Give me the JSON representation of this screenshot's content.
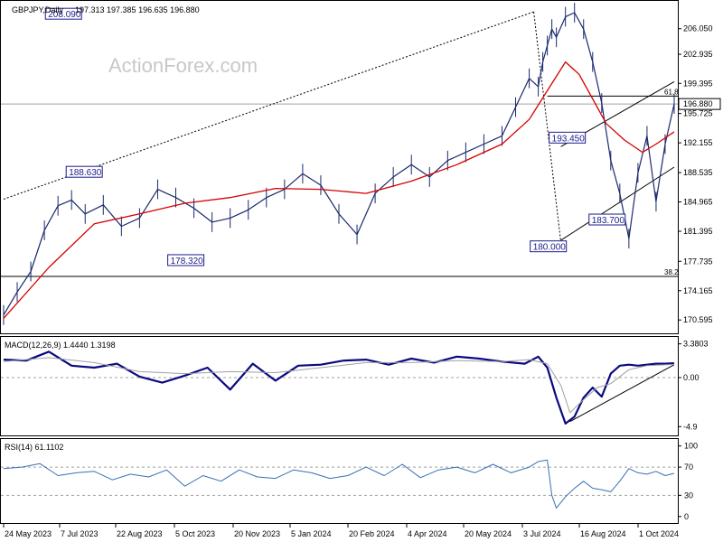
{
  "header": {
    "symbol": "GBPJPY,Daily",
    "ohlc": "197.313 197.385 196.635 196.880"
  },
  "watermark": "ActionForex.com",
  "colors": {
    "price": "#1a2a6c",
    "ema": "#d40000",
    "macd": "#0a0a80",
    "signal": "#a0a0a0",
    "rsi": "#3a6fb5",
    "grid": "#a0a0a0",
    "trend": "#000000",
    "label_border": "#1b1b8c"
  },
  "chart_data": [
    {
      "panel": "price",
      "type": "line",
      "title": "GBPJPY,Daily",
      "x_labels": [
        "24 May 2023",
        "7 Jul 2023",
        "22 Aug 2023",
        "5 Oct 2023",
        "20 Nov 2023",
        "5 Jan 2024",
        "20 Feb 2024",
        "4 Apr 2024",
        "20 May 2024",
        "3 Jul 2024",
        "16 Aug 2024",
        "1 Oct 2024"
      ],
      "y_ticks": [
        206.05,
        202.935,
        199.395,
        195.725,
        192.155,
        188.535,
        184.965,
        181.395,
        177.735,
        174.165,
        170.595
      ],
      "ylim": [
        169.3,
        209.1
      ],
      "current_price": 196.88,
      "annotations": [
        {
          "label": "208.090",
          "x": 18,
          "y": 208.09
        },
        {
          "label": "188.630",
          "x": 15,
          "y": 188.63
        },
        {
          "label": "178.320",
          "x": 45,
          "y": 178.32
        },
        {
          "label": "193.450",
          "x": 122,
          "y": 193.45
        },
        {
          "label": "183.700",
          "x": 130,
          "y": 183.7
        },
        {
          "label": "180.000",
          "x": 125,
          "y": 180.0
        }
      ],
      "fib_levels": [
        {
          "label": "61.8",
          "y": 197.85
        },
        {
          "label": "38.2",
          "y": 175.9
        }
      ],
      "series": [
        {
          "kind": "price",
          "x": [
            0,
            3,
            6,
            9,
            12,
            15,
            18,
            22,
            26,
            30,
            34,
            38,
            42,
            46,
            50,
            54,
            58,
            62,
            66,
            70,
            74,
            78,
            82,
            86,
            90,
            94,
            98,
            102,
            106,
            110,
            113,
            116,
            118,
            119,
            120,
            121,
            122,
            124,
            126,
            128,
            130,
            132,
            134,
            136,
            138,
            140,
            142,
            144,
            146,
            148
          ],
          "y": [
            171.2,
            174.0,
            176.5,
            181.5,
            184.5,
            185.2,
            183.5,
            184.6,
            182.0,
            183.0,
            186.5,
            185.5,
            184.2,
            182.5,
            183.0,
            184.0,
            185.5,
            186.5,
            188.4,
            187.0,
            183.5,
            181.0,
            186.0,
            188.0,
            189.5,
            188.0,
            190.0,
            191.0,
            192.0,
            193.0,
            196.5,
            200.0,
            199.0,
            202.0,
            204.0,
            206.0,
            205.0,
            207.5,
            208.0,
            206.0,
            202.0,
            197.0,
            190.0,
            186.0,
            180.5,
            188.5,
            193.0,
            185.0,
            192.0,
            196.9
          ]
        },
        {
          "kind": "ema",
          "x": [
            0,
            10,
            20,
            30,
            40,
            50,
            60,
            70,
            80,
            90,
            100,
            110,
            116,
            120,
            124,
            127,
            130,
            133,
            137,
            141,
            144,
            148
          ],
          "y": [
            170.8,
            177.0,
            182.3,
            183.5,
            184.8,
            185.5,
            186.6,
            186.5,
            186.0,
            187.5,
            189.5,
            192.0,
            195.0,
            198.5,
            202.0,
            200.5,
            197.5,
            194.5,
            192.5,
            191.0,
            192.0,
            193.5
          ]
        }
      ]
    },
    {
      "panel": "macd",
      "type": "line",
      "title": "MACD(12,26,9) 1.4440 1.3198",
      "y_ticks": [
        3.3803,
        0.0,
        -4.9
      ],
      "ylim": [
        -5.6,
        3.8
      ],
      "series": [
        {
          "name": "MACD",
          "x": [
            0,
            5,
            10,
            15,
            20,
            25,
            30,
            35,
            40,
            45,
            50,
            55,
            60,
            65,
            70,
            75,
            80,
            85,
            90,
            95,
            100,
            105,
            110,
            115,
            118,
            120,
            122,
            124,
            126,
            128,
            130,
            132,
            134,
            136,
            138,
            140,
            142,
            144,
            146,
            148
          ],
          "y": [
            1.8,
            1.7,
            2.6,
            1.2,
            1.0,
            1.4,
            0.1,
            -0.5,
            0.2,
            1.0,
            -1.2,
            1.4,
            -0.3,
            1.2,
            1.3,
            1.7,
            1.8,
            1.3,
            1.9,
            1.5,
            2.1,
            1.9,
            1.6,
            1.4,
            2.1,
            1.0,
            -2.0,
            -4.6,
            -3.9,
            -2.0,
            -1.0,
            -1.9,
            0.4,
            1.2,
            1.3,
            1.2,
            1.3,
            1.4,
            1.4,
            1.44
          ]
        },
        {
          "name": "Signal",
          "x": [
            0,
            10,
            20,
            30,
            40,
            50,
            60,
            70,
            80,
            90,
            100,
            110,
            116,
            120,
            123,
            125,
            128,
            131,
            134,
            138,
            142,
            148
          ],
          "y": [
            1.6,
            2.0,
            1.5,
            0.6,
            0.4,
            0.6,
            0.5,
            1.0,
            1.5,
            1.5,
            1.7,
            1.6,
            1.8,
            1.4,
            -0.8,
            -3.5,
            -2.2,
            -1.0,
            -0.6,
            0.8,
            1.2,
            1.32
          ]
        }
      ]
    },
    {
      "panel": "rsi",
      "type": "line",
      "title": "RSI(14) 61.1102",
      "y_ticks": [
        100,
        70,
        30,
        0
      ],
      "ylim": [
        -8,
        106
      ],
      "levels": [
        70,
        30
      ],
      "series": [
        {
          "name": "RSI(14)",
          "x": [
            0,
            4,
            8,
            12,
            16,
            20,
            24,
            28,
            32,
            36,
            40,
            44,
            48,
            52,
            56,
            60,
            64,
            68,
            72,
            76,
            80,
            84,
            88,
            92,
            96,
            100,
            104,
            108,
            112,
            116,
            118,
            120,
            121,
            122,
            124,
            126,
            128,
            130,
            132,
            134,
            136,
            138,
            140,
            142,
            144,
            146,
            148
          ],
          "y": [
            68,
            70,
            75,
            58,
            62,
            64,
            52,
            60,
            56,
            66,
            43,
            58,
            50,
            66,
            56,
            54,
            66,
            62,
            54,
            58,
            70,
            58,
            74,
            55,
            66,
            70,
            62,
            74,
            62,
            70,
            78,
            80,
            30,
            12,
            28,
            40,
            50,
            40,
            38,
            35,
            50,
            68,
            62,
            60,
            64,
            58,
            61.11
          ]
        }
      ]
    }
  ]
}
